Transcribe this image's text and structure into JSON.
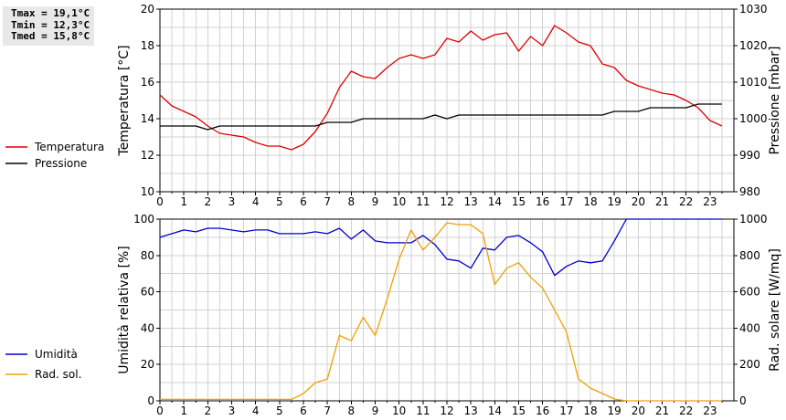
{
  "stats": {
    "tmax": "Tmax = 19,1°C",
    "tmin": "Tmin = 12,3°C",
    "tmed": "Tmed = 15,8°C"
  },
  "colors": {
    "temperature": "#dd0000",
    "pressure": "#000000",
    "humidity": "#0000cc",
    "radiation": "#f0a000",
    "grid": "#d2d2d2"
  },
  "chart_data": [
    {
      "type": "line",
      "xlim": [
        0,
        24
      ],
      "x_ticks": [
        "0",
        "1",
        "2",
        "3",
        "4",
        "5",
        "6",
        "7",
        "8",
        "9",
        "10",
        "11",
        "12",
        "13",
        "14",
        "15",
        "16",
        "17",
        "18",
        "19",
        "20",
        "21",
        "22",
        "23"
      ],
      "ylabel": "Temperatura [°C]",
      "ylim": [
        10,
        20
      ],
      "y_ticks": [
        "10",
        "12",
        "14",
        "16",
        "18",
        "20"
      ],
      "y2label": "Pressione [mbar]",
      "y2lim": [
        980,
        1030
      ],
      "y2_ticks": [
        "980",
        "990",
        "1000",
        "1010",
        "1020",
        "1030"
      ],
      "grid": true,
      "legend_position": "left",
      "series": [
        {
          "name": "Temperatura",
          "axis": "left",
          "x": [
            0,
            0.5,
            1,
            1.5,
            2,
            2.5,
            3,
            3.5,
            4,
            4.5,
            5,
            5.5,
            6,
            6.5,
            7,
            7.5,
            8,
            8.5,
            9,
            9.5,
            10,
            10.5,
            11,
            11.5,
            12,
            12.5,
            13,
            13.5,
            14,
            14.5,
            15,
            15.5,
            16,
            16.5,
            17,
            17.5,
            18,
            18.5,
            19,
            19.5,
            20,
            20.5,
            21,
            21.5,
            22,
            22.5,
            23,
            23.5
          ],
          "values": [
            15.3,
            14.7,
            14.4,
            14.1,
            13.6,
            13.2,
            13.1,
            13.0,
            12.7,
            12.5,
            12.5,
            12.3,
            12.6,
            13.3,
            14.3,
            15.7,
            16.6,
            16.3,
            16.2,
            16.8,
            17.3,
            17.5,
            17.3,
            17.5,
            18.4,
            18.2,
            18.8,
            18.3,
            18.6,
            18.7,
            17.7,
            18.5,
            18.0,
            19.1,
            18.7,
            18.2,
            18.0,
            17.0,
            16.8,
            16.1,
            15.8,
            15.6,
            15.4,
            15.3,
            15.0,
            14.6,
            13.9,
            13.6
          ]
        },
        {
          "name": "Pressione",
          "axis": "right",
          "x": [
            0,
            1.5,
            2,
            2.5,
            3,
            6.5,
            7,
            8,
            8.5,
            11,
            11.5,
            12,
            12.5,
            18.5,
            19,
            20,
            20.5,
            22,
            22.5,
            23.5
          ],
          "values": [
            998,
            998,
            997,
            998,
            998,
            998,
            999,
            999,
            1000,
            1000,
            1001,
            1000,
            1001,
            1001,
            1002,
            1002,
            1003,
            1003,
            1004,
            1004
          ]
        }
      ]
    },
    {
      "type": "line",
      "xlim": [
        0,
        24
      ],
      "x_ticks": [
        "0",
        "1",
        "2",
        "3",
        "4",
        "5",
        "6",
        "7",
        "8",
        "9",
        "10",
        "11",
        "12",
        "13",
        "14",
        "15",
        "16",
        "17",
        "18",
        "19",
        "20",
        "21",
        "22",
        "23"
      ],
      "ylabel": "Umidità relativa [%]",
      "ylim": [
        0,
        100
      ],
      "y_ticks": [
        "0",
        "20",
        "40",
        "60",
        "80",
        "100"
      ],
      "y2label": "Rad. solare [W/mq]",
      "y2lim": [
        0,
        1000
      ],
      "y2_ticks": [
        "0",
        "200",
        "400",
        "600",
        "800",
        "1000"
      ],
      "grid": true,
      "legend_position": "left",
      "series": [
        {
          "name": "Umidità",
          "axis": "left",
          "x": [
            0,
            0.5,
            1,
            1.5,
            2,
            2.5,
            3,
            3.5,
            4,
            4.5,
            5,
            5.5,
            6,
            6.5,
            7,
            7.5,
            8,
            8.5,
            9,
            9.5,
            10,
            10.5,
            11,
            11.5,
            12,
            12.5,
            13,
            13.5,
            14,
            14.5,
            15,
            15.5,
            16,
            16.5,
            17,
            17.5,
            18,
            18.5,
            19,
            19.5,
            20,
            20.5,
            21,
            21.5,
            22,
            22.5,
            23,
            23.5
          ],
          "values": [
            90,
            92,
            94,
            93,
            95,
            95,
            94,
            93,
            94,
            94,
            92,
            92,
            92,
            93,
            92,
            95,
            89,
            94,
            88,
            87,
            87,
            87,
            91,
            86,
            78,
            77,
            73,
            84,
            83,
            90,
            91,
            87,
            82,
            69,
            74,
            77,
            76,
            77,
            88,
            100,
            100,
            100,
            100,
            100,
            100,
            100,
            100,
            100
          ]
        },
        {
          "name": "Rad. sol.",
          "axis": "right",
          "x": [
            0,
            0.5,
            1,
            1.5,
            2,
            2.5,
            3,
            3.5,
            4,
            4.5,
            5,
            5.5,
            6,
            6.5,
            7,
            7.5,
            8,
            8.5,
            9,
            9.5,
            10,
            10.5,
            11,
            11.5,
            12,
            12.5,
            13,
            13.5,
            14,
            14.5,
            15,
            15.5,
            16,
            16.5,
            17,
            17.5,
            18,
            18.5,
            19,
            19.5,
            20,
            20.5,
            21,
            21.5,
            22,
            22.5,
            23,
            23.5
          ],
          "values": [
            8,
            8,
            8,
            8,
            8,
            8,
            8,
            8,
            8,
            8,
            8,
            8,
            40,
            100,
            120,
            360,
            330,
            460,
            360,
            560,
            780,
            940,
            830,
            900,
            980,
            970,
            970,
            920,
            640,
            730,
            760,
            680,
            620,
            500,
            380,
            120,
            70,
            40,
            10,
            0,
            0,
            0,
            0,
            0,
            0,
            0,
            0,
            0
          ]
        }
      ]
    }
  ]
}
